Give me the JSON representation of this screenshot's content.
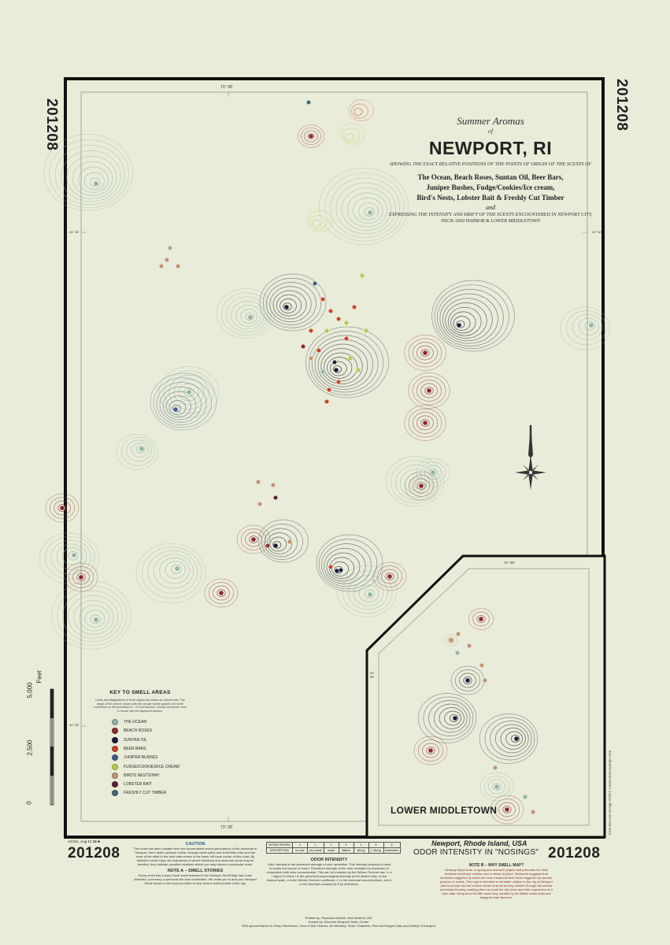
{
  "poster": {
    "edition_code": "201208",
    "edition_detail": "1st Ed., Aug 12",
    "edition_number": "12"
  },
  "title_block": {
    "pre_title": "Summer Aromas",
    "of_word": "of",
    "main_title": "NEWPORT, RI",
    "subtitle": "SHOWING THE EXACT RELATIVE POSITIONS OF THE POINTS OF ORIGIN OF THE SCENTS OF",
    "scent_lines": [
      "The Ocean, Beach Roses, Suntan Oil, Beer Bars,",
      "Juniper Bushes, Fudge/Cookies/Ice cream,",
      "Bird's Nests, Lobster Bait & Freshly Cut Timber"
    ],
    "and_word": "and",
    "description": "EXPRESSING THE INTENSITY AND DRIFT OF THE SCENTS ENCOUNTERED IN NEWPORT CITY, NECK AND HARBOR & LOWER MIDDLETOWN"
  },
  "map": {
    "graticule": {
      "longitude_top": "71° 20'",
      "longitude_bottom": "71° 20'",
      "latitude_left": "41° 30'",
      "latitude_right": "41° 30'",
      "latitude_lower": "41° 25'"
    },
    "scale_bar": {
      "labels": [
        "0",
        "2,500",
        "5,000"
      ],
      "unit": "Feet"
    },
    "inset": {
      "label": "LOWER MIDDLETOWN",
      "longitude": "71° 20'",
      "latitude": "41° 30'"
    },
    "compass_visible": true
  },
  "legend": {
    "title": "KEY TO SMELL AREAS",
    "note": "Limits and designations of smell origins are shown as colored dots. The range of the smell is shown with the circular isoline graphic, the smell movement on the prevailing 10 - 20 knot summer \"smoky sou'wester\" and is shown with the displaced isolines.",
    "items": [
      {
        "label": "THE OCEAN",
        "color": "#8fb3a8"
      },
      {
        "label": "BEACH ROSES",
        "color": "#8e2a2c"
      },
      {
        "label": "SUNTAN OIL",
        "color": "#1b1f3a"
      },
      {
        "label": "BEER BARS",
        "color": "#d0402b"
      },
      {
        "label": "JUNIPER BUSHES",
        "color": "#3f5f86"
      },
      {
        "label": "FUDGE/COOKIES/ICE CREAM",
        "color": "#b9c84c"
      },
      {
        "label": "BIRD'S NESTS/HAY",
        "color": "#c39274"
      },
      {
        "label": "LOBSTER BAIT",
        "color": "#5e2034"
      },
      {
        "label": "FRESHLY CUT TIMBER",
        "color": "#3d6a7a"
      }
    ]
  },
  "bottom": {
    "caution_title": "CAUTION",
    "caution_text": "This chart has been collated from the accumulated aroma perceptions of the residents of Newport, from visitor opinions online, through smell walks and smell bike rides and the nose of the artist to the print date shown in the lower left hand corner of this chart. By definition smell maps are indications of where transitory and seasonal odors may be smelled, they indicate possible locations where you may discern a particular smell.",
    "note_a_title": "NOTE A – SMELL STORIES",
    "note_a_text": "Every smell has a story. Each smell featured in the Newport Smell Map has a tale attached, a memory, a personal link and recollection. We invite you to add your Newport Smell stories in the book provided to help build a smell portrait of the city.",
    "rating_table": {
      "header": "NOSING RATING",
      "values": [
        "0",
        "1",
        "2",
        "3",
        "4",
        "5",
        "6"
      ],
      "desc_header": "DESCRIPTION",
      "descriptions": [
        "no odor",
        "very weak",
        "weak",
        "distinct",
        "strong",
        "v. strong",
        "intolerable"
      ]
    },
    "odor_title": "ODOR INTENSITY",
    "odor_text": "Odor intensity is the perceived strength of odor sensation. This intensity property is used to locate the source of odors. Perceived strength of the odor sensation is measured in conjunction with odor concentration. This can be modeled by the Weber-Fechner law: I= a * log(c)+b where I is the perceived psychological intensity at the dilution step on the butanol scale, a is the Weber-Fechner coefficient, C is the chemical concentrations, and b is the intercept constant (0.5 by definition).",
    "location_title": "Newport, Rhode Island, USA",
    "odor_heading": "ODOR INTENSITY IN \"NOSINGS\"",
    "note_b_title": "NOTE B – WHY SMELL MAP?",
    "note_b_text": "Sensory Maps is an on-going arts research project that promotes the links between smell and emotion and a sense of place. Research suggests that memories triggered by smell are more emotional than those triggered by sounds, pictures or words. This map is intended to sensitize visitors to the city of Newport and to prompt the use of their sense of smell as they wander through the streets and walks thereby enabling them to recall the city more and their experience at a later date. Newport is the fifth smell map created by the British smell artist and designer Kate McLean.",
    "credits": [
      "Printed by: Reynolds DeWalt, New Bedford, MA",
      "Hosted by: Discover Newport Visitor Center",
      "With special thanks to: Mary Hutchinson, Dave & Mia Yianzos, Art Weekley, Susie Chadwick, Rita and Morgan Daly and Kathryn Farrington"
    ],
    "side_credit": "Kate McLean Design ©2012 | www.sensorymaps.com"
  }
}
